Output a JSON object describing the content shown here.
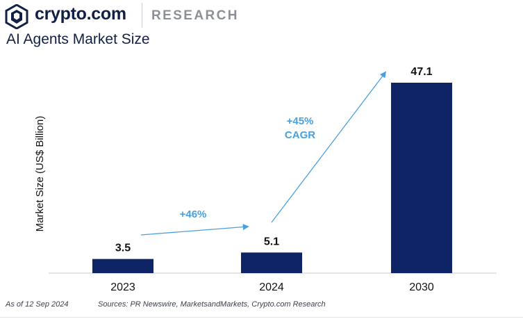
{
  "brand": {
    "name": "crypto.com",
    "section": "RESEARCH",
    "icon": "crypto-com-lion-shield-icon"
  },
  "colors": {
    "bar": "#0e2466",
    "annotation": "#4a9fde",
    "axis": "#c7c7c7",
    "text": "#111111",
    "title": "#112044"
  },
  "chart_data": {
    "type": "bar",
    "title": "AI Agents Market Size",
    "xlabel": "",
    "ylabel": "Market Size (US$ Billion)",
    "categories": [
      "2023",
      "2024",
      "2030"
    ],
    "values": [
      3.5,
      5.1,
      47.1
    ],
    "data_labels": [
      "3.5",
      "5.1",
      "47.1"
    ],
    "ylim": [
      0,
      50
    ],
    "grid": false,
    "legend": "none",
    "annotations": [
      {
        "text": "+46%",
        "from": "2023",
        "to": "2024"
      },
      {
        "text": "+45%\nCAGR",
        "from": "2024",
        "to": "2030"
      }
    ]
  },
  "footer": {
    "as_of": "As of 12 Sep 2024",
    "sources": "Sources: PR Newswire, MarketsandMarkets, Crypto.com Research"
  }
}
